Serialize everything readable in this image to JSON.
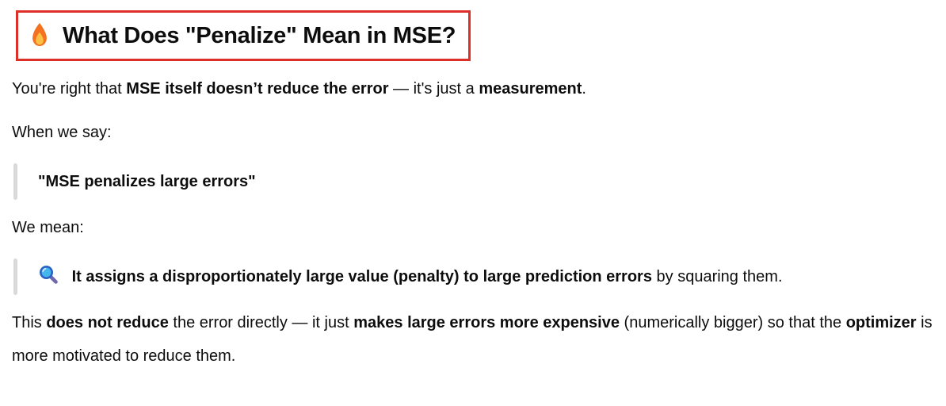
{
  "colors": {
    "text": "#0d0d0d",
    "highlight_border": "#dc2f27",
    "quote_bar": "#d9d9d9",
    "flame_outer": "#f4721f",
    "flame_inner": "#fcc144",
    "magnifier_lens": "#45b5ee",
    "magnifier_ring": "#2a63c4",
    "magnifier_handle": "#6f68ad"
  },
  "heading": {
    "icon": "fire-icon",
    "text": "What Does \"Penalize\" Mean in MSE?"
  },
  "paragraph_1": [
    {
      "text": "You're right that ",
      "bold": false
    },
    {
      "text": "MSE itself doesn’t reduce the error",
      "bold": true
    },
    {
      "text": " — it's just a ",
      "bold": false
    },
    {
      "text": "measurement",
      "bold": true
    },
    {
      "text": ".",
      "bold": false
    }
  ],
  "paragraph_2": [
    {
      "text": "When we say:",
      "bold": false
    }
  ],
  "blockquote_1": [
    {
      "text": "\"MSE penalizes large errors\"",
      "bold": true
    }
  ],
  "paragraph_3": [
    {
      "text": "We mean:",
      "bold": false
    }
  ],
  "blockquote_2": {
    "icon": "magnifier-icon",
    "segments": [
      {
        "text": "It assigns a disproportionately large value (penalty) to large prediction errors",
        "bold": true
      },
      {
        "text": " by squaring them.",
        "bold": false
      }
    ]
  },
  "paragraph_4": [
    {
      "text": "This ",
      "bold": false
    },
    {
      "text": "does not reduce",
      "bold": true
    },
    {
      "text": " the error directly — it just ",
      "bold": false
    },
    {
      "text": "makes large errors more expensive",
      "bold": true
    },
    {
      "text": " (numerically bigger) so that the ",
      "bold": false
    },
    {
      "text": "optimizer",
      "bold": true
    },
    {
      "text": " is more motivated to reduce them.",
      "bold": false
    }
  ]
}
